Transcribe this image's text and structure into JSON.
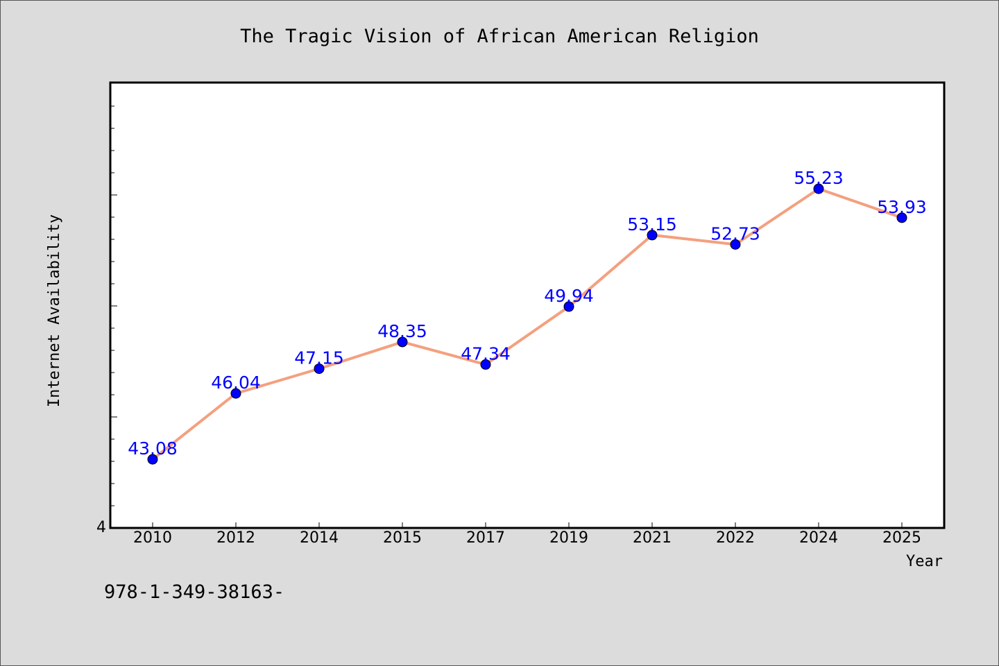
{
  "chart_data": {
    "type": "line",
    "title": "The Tragic Vision of African American Religion",
    "xlabel": "Year",
    "ylabel": "Internet Availability",
    "categories": [
      "2010",
      "2012",
      "2014",
      "2015",
      "2017",
      "2019",
      "2021",
      "2022",
      "2024",
      "2025"
    ],
    "series": [
      {
        "values": [
          43.08,
          46.04,
          47.15,
          48.35,
          47.34,
          49.94,
          53.15,
          52.73,
          55.23,
          53.93
        ],
        "value_labels": [
          "43.08",
          "46.04",
          "47.15",
          "48.35",
          "47.34",
          "49.94",
          "53.15",
          "52.73",
          "55.23",
          "53.93"
        ]
      }
    ],
    "ytick_label": "4",
    "ylim": [
      40,
      60
    ],
    "grid": false,
    "line_color": "#f4a07f",
    "marker_color": "#0000ff",
    "label_color": "#0000ff"
  },
  "footer_text": "978-1-349-38163-"
}
